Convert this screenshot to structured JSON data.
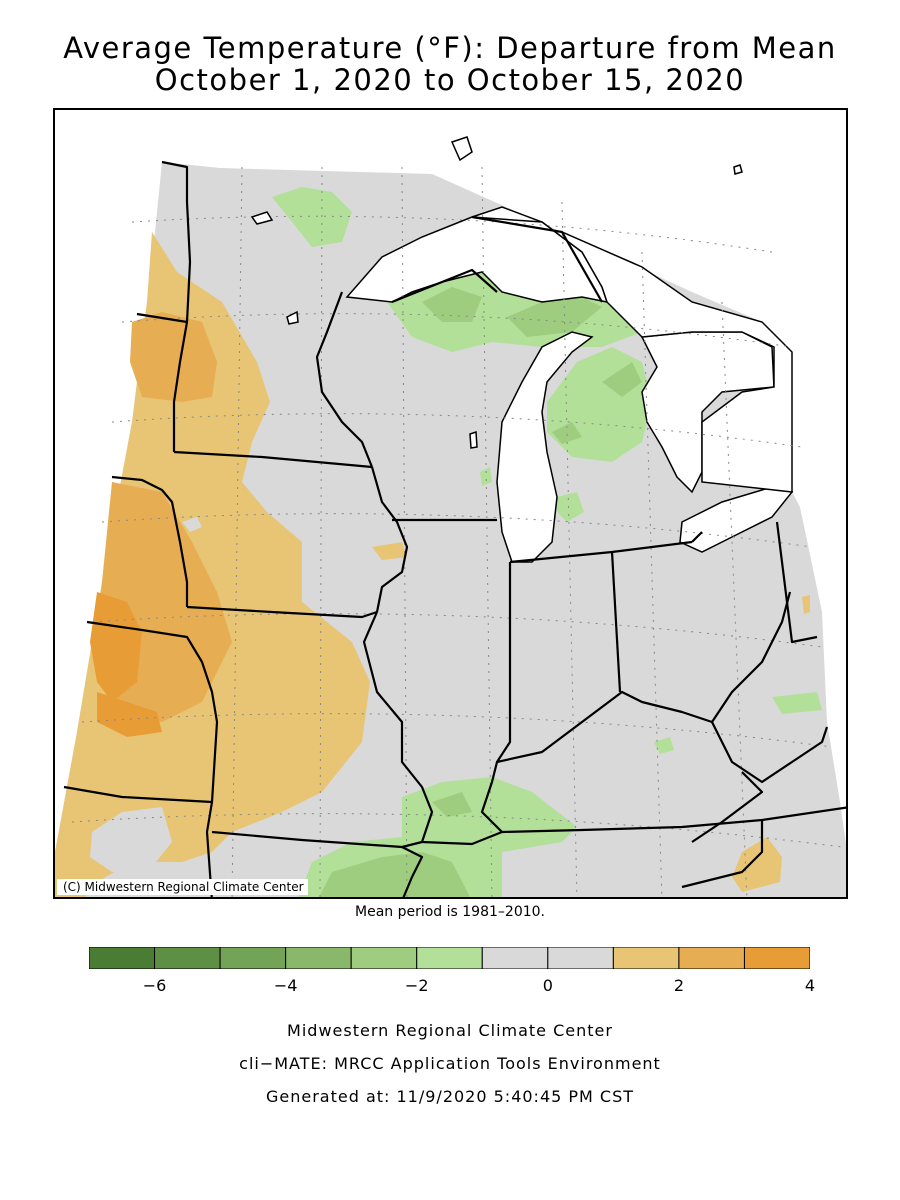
{
  "title_line1": "Average Temperature (°F): Departure from Mean",
  "title_line2": "October 1, 2020 to October 15, 2020",
  "copyright": "(C) Midwestern Regional Climate Center",
  "mean_period": "Mean period is 1981–2010.",
  "legend": {
    "colors": [
      "#4a7d33",
      "#5f8e45",
      "#73a356",
      "#89b86a",
      "#9ecd80",
      "#b2e098",
      "#d9d9d9",
      "#d9d9d9",
      "#e8c574",
      "#e7ad52",
      "#e89c35"
    ],
    "bounds": [
      -7,
      -6,
      -5,
      -4,
      -3,
      -2,
      -1,
      0,
      1,
      2,
      3,
      4
    ],
    "tick_labels": [
      "−6",
      "−4",
      "−2",
      "0",
      "2",
      "4"
    ]
  },
  "credits": {
    "line1": "Midwestern Regional Climate Center",
    "line2": "cli−MATE: MRCC Application Tools Environment",
    "line3": "Generated at: 11/9/2020 5:40:45 PM CST"
  }
}
